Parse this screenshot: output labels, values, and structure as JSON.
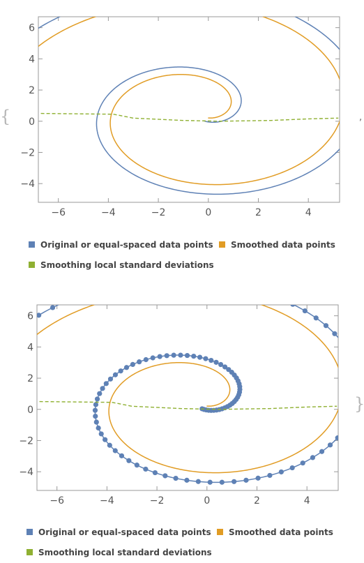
{
  "wrapper": {
    "open_brace": "{",
    "close_brace": "}",
    "separator": ","
  },
  "colors": {
    "original": "#5E81B5",
    "smoothed": "#E19C24",
    "stdev": "#8FB032",
    "frame": "#999999"
  },
  "chart_data": [
    {
      "type": "line",
      "title": "",
      "xlabel": "",
      "ylabel": "",
      "xlim": [
        -6.8,
        5.25
      ],
      "ylim": [
        -5.2,
        6.7
      ],
      "x_ticks": [
        -6,
        -4,
        -2,
        0,
        2,
        4
      ],
      "y_ticks": [
        -4,
        -2,
        0,
        2,
        4,
        6
      ],
      "grid": false,
      "legend_position": "bottom",
      "legend": [
        {
          "label": "Original or equal-spaced data points",
          "color": "#5E81B5"
        },
        {
          "label": "Smoothed data points",
          "color": "#E19C24"
        },
        {
          "label": "Smoothing local standard deviations",
          "color": "#8FB032"
        }
      ],
      "series": [
        {
          "name": "Original or equal-spaced data points",
          "kind": "spiral",
          "center": [
            -0.4,
            0.6
          ],
          "a": 0.6,
          "growth": 0.095,
          "theta_range_deg": [
            -70,
            540
          ],
          "show_points": false
        },
        {
          "name": "Smoothed data points",
          "kind": "spiral",
          "center": [
            -0.4,
            0.6
          ],
          "a": 0.55,
          "growth": 0.09,
          "theta_range_deg": [
            -45,
            540
          ],
          "show_points": false
        },
        {
          "name": "Smoothing local standard deviations",
          "kind": "dashed",
          "points": [
            [
              -6.7,
              0.5
            ],
            [
              -3.8,
              0.45
            ],
            [
              -3.0,
              0.2
            ],
            [
              -1.0,
              0.05
            ],
            [
              0.5,
              0.0
            ],
            [
              2.5,
              0.05
            ],
            [
              4.0,
              0.15
            ],
            [
              5.2,
              0.2
            ]
          ]
        }
      ]
    },
    {
      "type": "line",
      "title": "",
      "xlabel": "",
      "ylabel": "",
      "xlim": [
        -6.8,
        5.25
      ],
      "ylim": [
        -5.2,
        6.7
      ],
      "x_ticks": [
        -6,
        -4,
        -2,
        0,
        2,
        4
      ],
      "y_ticks": [
        -4,
        -2,
        0,
        2,
        4,
        6
      ],
      "grid": false,
      "legend_position": "bottom",
      "legend": [
        {
          "label": "Original or equal-spaced data points",
          "color": "#5E81B5"
        },
        {
          "label": "Smoothed data points",
          "color": "#E19C24"
        },
        {
          "label": "Smoothing local standard deviations",
          "color": "#8FB032"
        }
      ],
      "series": [
        {
          "name": "Original or equal-spaced data points",
          "kind": "spiral",
          "center": [
            -0.4,
            0.6
          ],
          "a": 0.6,
          "growth": 0.095,
          "theta_range_deg": [
            -70,
            540
          ],
          "show_points": true,
          "point_count": 120
        },
        {
          "name": "Smoothed data points",
          "kind": "spiral",
          "center": [
            -0.4,
            0.6
          ],
          "a": 0.55,
          "growth": 0.09,
          "theta_range_deg": [
            -45,
            540
          ],
          "show_points": false
        },
        {
          "name": "Smoothing local standard deviations",
          "kind": "dashed",
          "points": [
            [
              -6.7,
              0.5
            ],
            [
              -3.8,
              0.45
            ],
            [
              -3.0,
              0.2
            ],
            [
              -1.0,
              0.05
            ],
            [
              0.5,
              0.0
            ],
            [
              2.5,
              0.05
            ],
            [
              4.0,
              0.15
            ],
            [
              5.2,
              0.2
            ]
          ]
        }
      ]
    }
  ]
}
